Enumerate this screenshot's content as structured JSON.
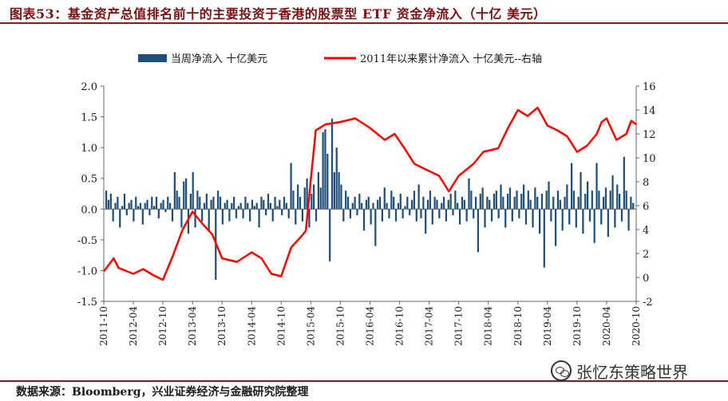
{
  "header": {
    "title": "图表53：基金资产总值排名前十的主要投资于香港的股票型 ETF 资金净流入（十亿 美元）"
  },
  "footer": {
    "source": "数据来源：Bloomberg，兴业证券经济与金融研究院整理",
    "watermark": "张忆东策略世界"
  },
  "chart_data": {
    "type": "bar+line",
    "series": [
      {
        "name": "当周净流入 十亿美元",
        "type": "bar",
        "axis": "left",
        "color": "#1f4e79"
      },
      {
        "name": "2011年以来累计净流入 十亿美元--右轴",
        "type": "line",
        "axis": "right",
        "color": "#ff0000"
      }
    ],
    "ylim_left": [
      -1.5,
      2.0
    ],
    "yticks_left": [
      "2.0",
      "1.5",
      "1.0",
      "0.5",
      "0.0",
      "-0.5",
      "-1.0",
      "-1.5"
    ],
    "ylim_right": [
      -2,
      16
    ],
    "yticks_right": [
      "16",
      "14",
      "12",
      "10",
      "8",
      "6",
      "4",
      "2",
      "0",
      "-2"
    ],
    "x_tick_labels": [
      "2011-10",
      "2012-04",
      "2012-10",
      "2013-04",
      "2013-10",
      "2014-04",
      "2014-10",
      "2015-04",
      "2015-10",
      "2016-04",
      "2016-10",
      "2017-04",
      "2017-10",
      "2018-04",
      "2018-10",
      "2019-04",
      "2019-10",
      "2020-04",
      "2020-10"
    ],
    "line_points": [
      [
        "2011-10",
        0.5
      ],
      [
        "2011-12",
        1.6
      ],
      [
        "2012-01",
        0.8
      ],
      [
        "2012-04",
        0.3
      ],
      [
        "2012-06",
        0.7
      ],
      [
        "2012-08",
        0.2
      ],
      [
        "2012-10",
        -0.2
      ],
      [
        "2012-12",
        1.8
      ],
      [
        "2013-02",
        4.0
      ],
      [
        "2013-04",
        5.5
      ],
      [
        "2013-06",
        4.5
      ],
      [
        "2013-08",
        3.6
      ],
      [
        "2013-10",
        1.6
      ],
      [
        "2014-01",
        1.3
      ],
      [
        "2014-04",
        2.1
      ],
      [
        "2014-06",
        1.6
      ],
      [
        "2014-08",
        0.3
      ],
      [
        "2014-10",
        0.1
      ],
      [
        "2014-12",
        2.5
      ],
      [
        "2015-02",
        3.4
      ],
      [
        "2015-03",
        3.9
      ],
      [
        "2015-04",
        8.2
      ],
      [
        "2015-05",
        12.3
      ],
      [
        "2015-07",
        12.8
      ],
      [
        "2015-10",
        13.0
      ],
      [
        "2016-01",
        13.3
      ],
      [
        "2016-04",
        12.5
      ],
      [
        "2016-07",
        11.5
      ],
      [
        "2016-09",
        12.0
      ],
      [
        "2016-11",
        10.8
      ],
      [
        "2017-01",
        9.5
      ],
      [
        "2017-03",
        9.1
      ],
      [
        "2017-06",
        8.5
      ],
      [
        "2017-08",
        7.2
      ],
      [
        "2017-10",
        8.5
      ],
      [
        "2018-01",
        9.5
      ],
      [
        "2018-03",
        10.5
      ],
      [
        "2018-06",
        10.8
      ],
      [
        "2018-08",
        12.5
      ],
      [
        "2018-10",
        14.0
      ],
      [
        "2018-12",
        13.5
      ],
      [
        "2019-02",
        14.2
      ],
      [
        "2019-04",
        12.7
      ],
      [
        "2019-06",
        12.3
      ],
      [
        "2019-08",
        11.8
      ],
      [
        "2019-10",
        10.5
      ],
      [
        "2019-12",
        11.0
      ],
      [
        "2020-02",
        12.0
      ],
      [
        "2020-03",
        13.0
      ],
      [
        "2020-04",
        13.3
      ],
      [
        "2020-06",
        11.5
      ],
      [
        "2020-08",
        12.0
      ],
      [
        "2020-09",
        13.1
      ],
      [
        "2020-10",
        12.8
      ]
    ],
    "bars": [
      0.3,
      0.15,
      0.25,
      -0.2,
      0.1,
      0.2,
      -0.3,
      0.05,
      0.25,
      -0.1,
      0.1,
      0.15,
      -0.2,
      0.2,
      0.05,
      0.1,
      -0.25,
      0.1,
      0.15,
      -0.1,
      0.2,
      0.05,
      0.2,
      -0.15,
      0.1,
      0.15,
      -0.05,
      0.2,
      0.1,
      -0.2,
      0.6,
      0.3,
      0.2,
      -0.3,
      0.45,
      0.5,
      -0.4,
      0.25,
      0.6,
      -0.3,
      0.3,
      0.2,
      -0.2,
      0.1,
      0.25,
      -0.35,
      0.15,
      0.2,
      -1.15,
      0.3,
      0.2,
      -0.25,
      0.1,
      0.15,
      -0.2,
      0.1,
      0.2,
      -0.15,
      0.05,
      0.1,
      -0.15,
      0.2,
      0.1,
      -0.2,
      0.15,
      0.05,
      0.1,
      -0.3,
      0.2,
      0.15,
      -0.1,
      0.25,
      0.1,
      -0.2,
      0.2,
      0.05,
      0.15,
      -0.1,
      0.2,
      0.1,
      -0.15,
      0.75,
      0.3,
      -0.25,
      0.4,
      0.2,
      -0.2,
      0.35,
      0.5,
      -0.3,
      0.25,
      0.4,
      -0.2,
      0.6,
      0.35,
      1.25,
      1.3,
      0.9,
      -0.85,
      1.47,
      0.6,
      1.0,
      0.6,
      0.4,
      -0.2,
      0.3,
      0.2,
      -0.15,
      0.1,
      0.2,
      -0.1,
      0.25,
      0.1,
      -0.35,
      0.15,
      0.2,
      -0.25,
      0.1,
      -0.6,
      0.15,
      0.2,
      -0.2,
      0.35,
      0.1,
      -0.15,
      0.3,
      0.2,
      -0.2,
      0.1,
      0.25,
      -0.15,
      0.05,
      0.2,
      -0.1,
      0.15,
      0.3,
      -0.2,
      0.4,
      -0.15,
      0.2,
      -0.4,
      0.15,
      0.3,
      -0.25,
      0.2,
      0.15,
      -0.15,
      0.1,
      0.2,
      -0.2,
      0.15,
      0.25,
      -0.1,
      0.3,
      0.1,
      -0.25,
      0.2,
      0.15,
      -0.2,
      0.5,
      0.3,
      -0.15,
      0.2,
      -0.7,
      0.25,
      0.35,
      -0.3,
      0.2,
      0.15,
      -0.2,
      0.25,
      0.3,
      -0.15,
      0.4,
      0.2,
      -0.3,
      0.25,
      0.35,
      -0.2,
      0.2,
      0.3,
      -0.15,
      0.25,
      0.4,
      -0.25,
      0.3,
      0.15,
      -0.3,
      0.35,
      0.2,
      -0.4,
      0.25,
      -0.95,
      0.3,
      0.45,
      -0.2,
      0.2,
      -0.6,
      0.3,
      0.15,
      -0.35,
      0.2,
      0.4,
      -0.25,
      0.75,
      0.3,
      -0.3,
      0.2,
      0.6,
      -0.4,
      0.25,
      0.45,
      -0.2,
      0.3,
      -0.55,
      0.75,
      0.3,
      -0.25,
      0.2,
      0.35,
      -0.45,
      0.3,
      0.55,
      -0.3,
      0.4,
      0.25,
      -0.2,
      0.85,
      0.3,
      -0.35,
      0.2,
      0.1
    ]
  }
}
